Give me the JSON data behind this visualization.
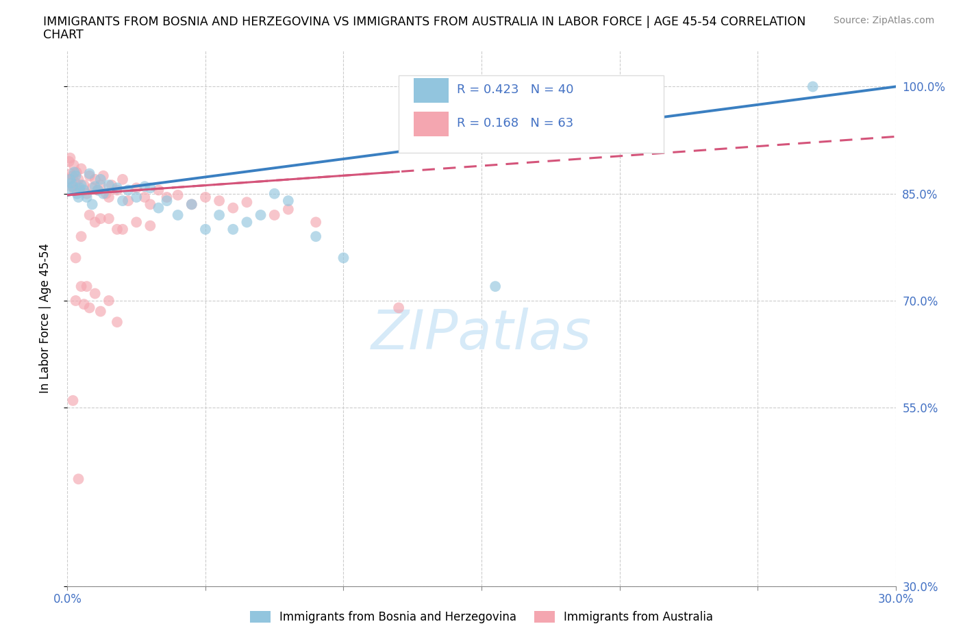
{
  "title_line1": "IMMIGRANTS FROM BOSNIA AND HERZEGOVINA VS IMMIGRANTS FROM AUSTRALIA IN LABOR FORCE | AGE 45-54 CORRELATION",
  "title_line2": "CHART",
  "source": "Source: ZipAtlas.com",
  "ylabel": "In Labor Force | Age 45-54",
  "xlim": [
    0.0,
    0.3
  ],
  "ylim": [
    0.3,
    1.05
  ],
  "ytick_positions": [
    0.3,
    0.55,
    0.7,
    0.85,
    1.0
  ],
  "ytick_labels": [
    "30.0%",
    "55.0%",
    "70.0%",
    "85.0%",
    "100.0%"
  ],
  "xtick_positions": [
    0.0,
    0.05,
    0.1,
    0.15,
    0.2,
    0.25,
    0.3
  ],
  "xtick_labels_show": {
    "0.0": "0.0%",
    "0.30": "30.0%"
  },
  "legend_r1_val": "0.423",
  "legend_r1_n": "40",
  "legend_r2_val": "0.168",
  "legend_r2_n": "63",
  "color_bosnia": "#92c5de",
  "color_australia": "#f4a6b0",
  "trendline_color_bosnia": "#3a7fc1",
  "trendline_color_australia": "#d4547a",
  "tick_color": "#4472c4",
  "watermark_color": "#d6eaf8",
  "bosnia_x": [
    0.0005,
    0.001,
    0.0015,
    0.002,
    0.0025,
    0.003,
    0.0035,
    0.004,
    0.0045,
    0.005,
    0.006,
    0.007,
    0.008,
    0.009,
    0.01,
    0.011,
    0.012,
    0.013,
    0.015,
    0.018,
    0.02,
    0.022,
    0.025,
    0.028,
    0.03,
    0.033,
    0.036,
    0.04,
    0.045,
    0.05,
    0.055,
    0.06,
    0.065,
    0.07,
    0.075,
    0.08,
    0.09,
    0.1,
    0.155,
    0.27
  ],
  "bosnia_y": [
    0.855,
    0.87,
    0.865,
    0.86,
    0.88,
    0.875,
    0.85,
    0.845,
    0.858,
    0.862,
    0.855,
    0.845,
    0.878,
    0.835,
    0.86,
    0.855,
    0.87,
    0.85,
    0.862,
    0.858,
    0.84,
    0.855,
    0.845,
    0.86,
    0.858,
    0.83,
    0.84,
    0.82,
    0.835,
    0.8,
    0.82,
    0.8,
    0.81,
    0.82,
    0.85,
    0.84,
    0.79,
    0.76,
    0.72,
    1.0
  ],
  "australia_x": [
    0.0003,
    0.0006,
    0.001,
    0.0013,
    0.0016,
    0.002,
    0.0023,
    0.0026,
    0.003,
    0.0033,
    0.004,
    0.0043,
    0.005,
    0.006,
    0.007,
    0.008,
    0.009,
    0.01,
    0.011,
    0.012,
    0.013,
    0.014,
    0.015,
    0.016,
    0.018,
    0.02,
    0.022,
    0.025,
    0.028,
    0.03,
    0.033,
    0.036,
    0.04,
    0.045,
    0.05,
    0.055,
    0.06,
    0.065,
    0.075,
    0.08,
    0.09,
    0.01,
    0.015,
    0.018,
    0.005,
    0.008,
    0.012,
    0.02,
    0.025,
    0.03,
    0.003,
    0.005,
    0.007,
    0.01,
    0.015,
    0.003,
    0.006,
    0.008,
    0.012,
    0.018,
    0.002,
    0.004,
    0.12
  ],
  "australia_y": [
    0.87,
    0.895,
    0.9,
    0.878,
    0.86,
    0.875,
    0.89,
    0.855,
    0.865,
    0.88,
    0.87,
    0.855,
    0.885,
    0.862,
    0.85,
    0.875,
    0.858,
    0.87,
    0.855,
    0.862,
    0.875,
    0.85,
    0.845,
    0.862,
    0.855,
    0.87,
    0.84,
    0.858,
    0.845,
    0.835,
    0.855,
    0.845,
    0.848,
    0.835,
    0.845,
    0.84,
    0.83,
    0.838,
    0.82,
    0.828,
    0.81,
    0.81,
    0.815,
    0.8,
    0.79,
    0.82,
    0.815,
    0.8,
    0.81,
    0.805,
    0.76,
    0.72,
    0.72,
    0.71,
    0.7,
    0.7,
    0.695,
    0.69,
    0.685,
    0.67,
    0.56,
    0.45,
    0.69
  ]
}
